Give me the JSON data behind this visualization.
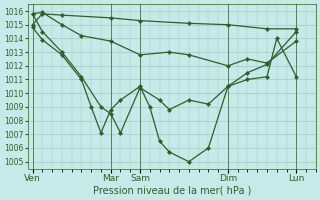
{
  "title": "Pression niveau de la mer( hPa )",
  "bg_color": "#c5eae8",
  "grid_color": "#9ecac8",
  "line_color": "#2d5e2d",
  "ylim": [
    1004.5,
    1016.5
  ],
  "yticks": [
    1005,
    1006,
    1007,
    1008,
    1009,
    1010,
    1011,
    1012,
    1013,
    1014,
    1015,
    1016
  ],
  "xtick_labels": [
    "Ven",
    "Mar",
    "Sam",
    "Dim",
    "Lun"
  ],
  "xtick_positions": [
    0,
    8,
    11,
    20,
    27
  ],
  "xlim": [
    -0.5,
    29
  ],
  "n_xgrid": 29,
  "lines": [
    {
      "x": [
        0,
        1,
        3,
        8,
        11,
        16,
        20,
        24,
        27
      ],
      "y": [
        1015.0,
        1015.8,
        1015.7,
        1015.5,
        1015.3,
        1015.1,
        1015.0,
        1014.7,
        1014.7
      ]
    },
    {
      "x": [
        0,
        1,
        3,
        5,
        8,
        11,
        14,
        16,
        20,
        22,
        24,
        27
      ],
      "y": [
        1015.8,
        1015.9,
        1015.0,
        1014.2,
        1013.8,
        1012.8,
        1013.0,
        1012.8,
        1012.0,
        1012.5,
        1012.2,
        1013.8
      ]
    },
    {
      "x": [
        0,
        1,
        3,
        5,
        7,
        8,
        9,
        11,
        13,
        14,
        16,
        18,
        20,
        22,
        24,
        27
      ],
      "y": [
        1015.8,
        1014.5,
        1013.0,
        1011.2,
        1009.0,
        1008.5,
        1007.1,
        1010.4,
        1009.5,
        1008.8,
        1009.5,
        1009.2,
        1010.5,
        1011.5,
        1012.1,
        1014.5
      ]
    },
    {
      "x": [
        0,
        1,
        3,
        5,
        6,
        7,
        8,
        9,
        11,
        12,
        13,
        14,
        16,
        18,
        20,
        22,
        24,
        25,
        27
      ],
      "y": [
        1014.8,
        1013.9,
        1012.8,
        1011.0,
        1009.0,
        1007.1,
        1008.8,
        1009.5,
        1010.5,
        1009.0,
        1006.5,
        1005.7,
        1005.0,
        1006.0,
        1010.5,
        1011.0,
        1011.2,
        1014.0,
        1011.2
      ]
    }
  ],
  "marker": "D",
  "markersize": 2.2,
  "linewidth": 0.9
}
